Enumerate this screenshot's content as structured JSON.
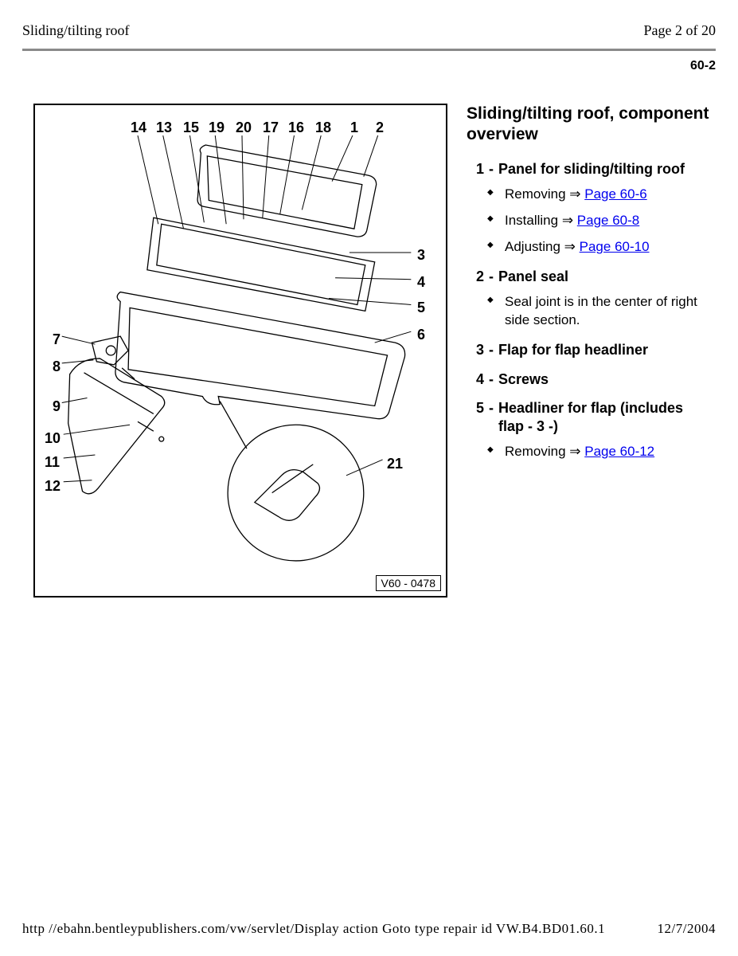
{
  "header": {
    "title": "Sliding/tilting roof",
    "page_label": "Page 2 of 20",
    "section_number": "60-2"
  },
  "figure": {
    "id_label": "V60 - 0478",
    "callouts_top": [
      "14",
      "13",
      "15",
      "19",
      "20",
      "17",
      "16",
      "18",
      "1",
      "2"
    ],
    "callouts_right": [
      "3",
      "4",
      "5",
      "6"
    ],
    "callouts_left": [
      "7",
      "8",
      "9",
      "10",
      "11",
      "12"
    ],
    "callout_detail": "21",
    "stroke_color": "#000000",
    "fill_color": "#ffffff",
    "line_width": 1.3
  },
  "overview": {
    "heading": "Sliding/tilting roof, component overview",
    "items": [
      {
        "num": "1",
        "title": "Panel for sliding/tilting roof",
        "subs": [
          {
            "prefix": "Removing ",
            "arrow": "⇒ ",
            "link": "Page 60-6"
          },
          {
            "prefix": "Installing ",
            "arrow": "⇒ ",
            "link": "Page 60-8"
          },
          {
            "prefix": "Adjusting ",
            "arrow": "⇒ ",
            "link": "Page 60-10"
          }
        ]
      },
      {
        "num": "2",
        "title": "Panel seal",
        "subs": [
          {
            "prefix": "Seal joint is in the center of right side section.",
            "arrow": "",
            "link": ""
          }
        ]
      },
      {
        "num": "3",
        "title": "Flap for flap headliner",
        "subs": []
      },
      {
        "num": "4",
        "title": "Screws",
        "subs": []
      },
      {
        "num": "5",
        "title": "Headliner for flap (includes flap - 3 -)",
        "subs": [
          {
            "prefix": "Removing ",
            "arrow": "⇒ ",
            "link": "Page 60-12"
          }
        ]
      }
    ]
  },
  "footer": {
    "url": "http //ebahn.bentleypublishers.com/vw/servlet/Display action Goto type repair id VW.B4.BD01.60.1",
    "date": "12/7/2004"
  },
  "colors": {
    "link": "#0000ee",
    "rule": "#8a8a8a",
    "text": "#000000",
    "background": "#ffffff"
  }
}
